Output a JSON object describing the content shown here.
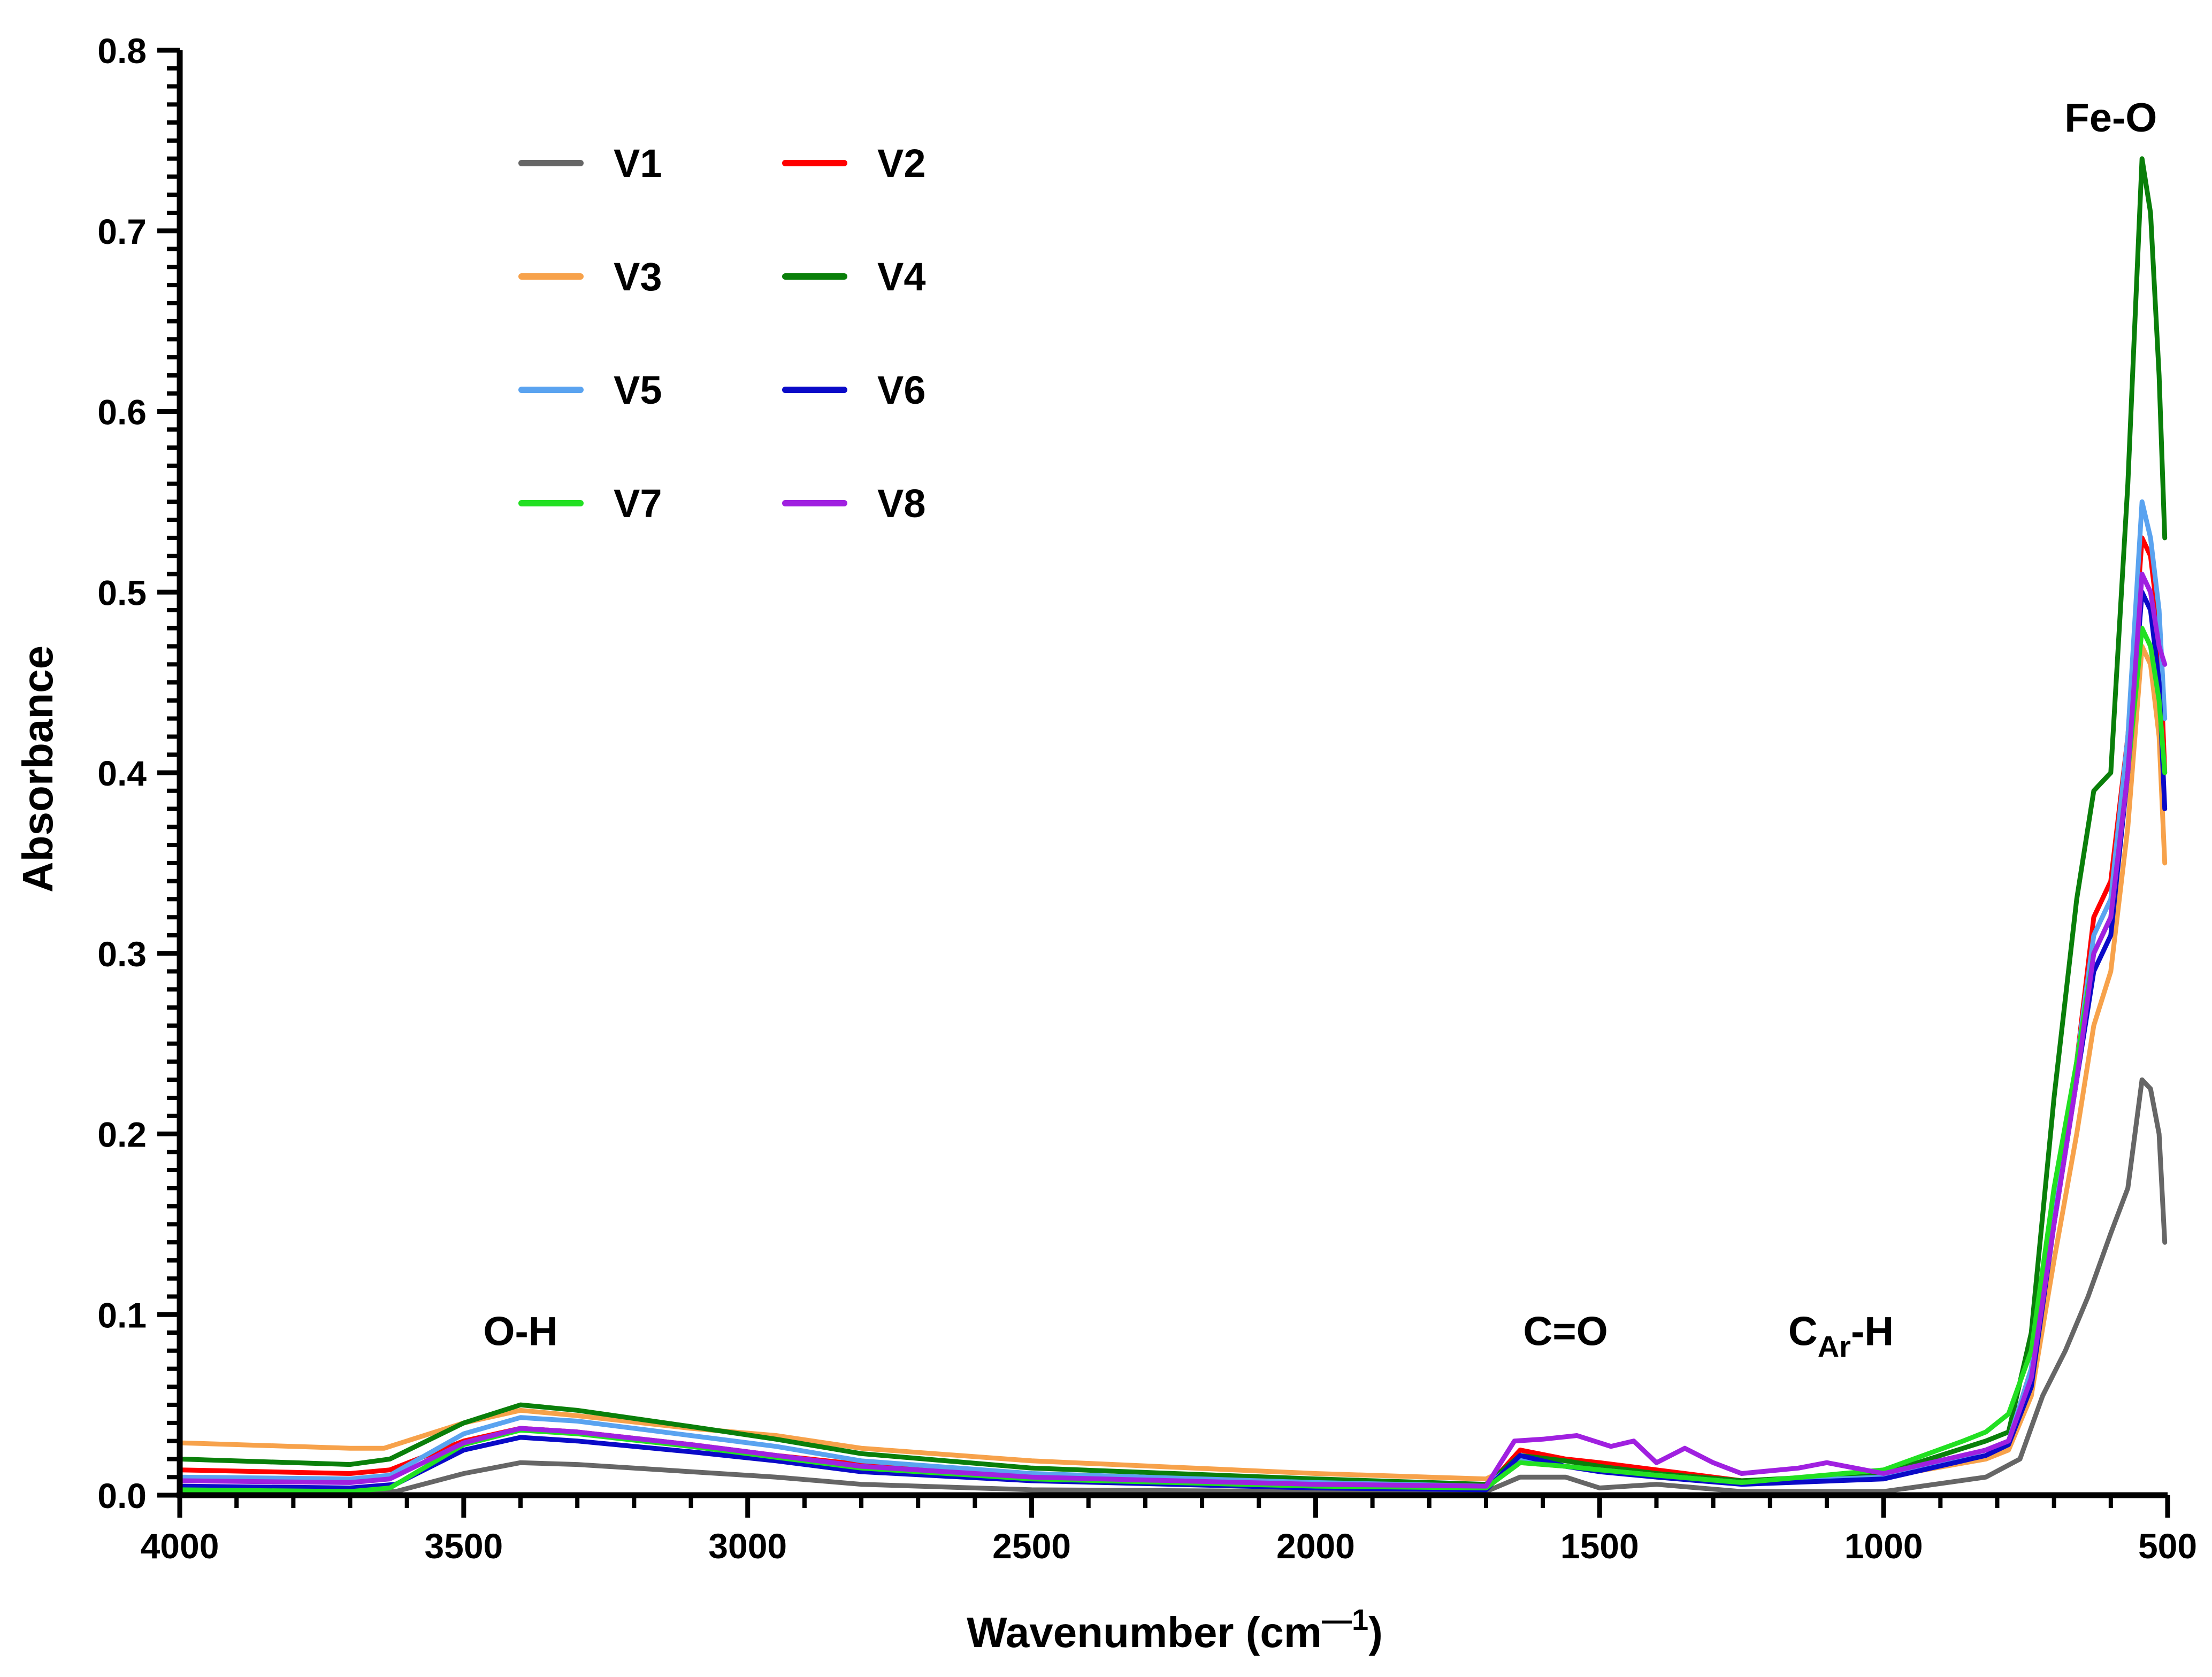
{
  "chart_data": {
    "type": "line",
    "title": "",
    "xlabel": "Wavenumber (cm",
    "xlabel_superscript": "—1",
    "xlabel_close": ")",
    "ylabel": "Absorbance",
    "xlim": [
      4000,
      500
    ],
    "ylim": [
      0.0,
      0.8
    ],
    "x_reversed": true,
    "x_ticks": [
      4000,
      3500,
      3000,
      2500,
      2000,
      1500,
      1000,
      500
    ],
    "x_tick_labels": [
      "4000",
      "3500",
      "3000",
      "2500",
      "2000",
      "1500",
      "1000",
      "500"
    ],
    "y_ticks": [
      0.0,
      0.1,
      0.2,
      0.3,
      0.4,
      0.5,
      0.6,
      0.7,
      0.8
    ],
    "y_tick_labels": [
      "0.0",
      "0.1",
      "0.2",
      "0.3",
      "0.4",
      "0.5",
      "0.6",
      "0.7",
      "0.8"
    ],
    "legend_position": "top-left",
    "grid": false,
    "annotations": [
      {
        "text": "O-H",
        "sub": "",
        "suffix": "",
        "x": 3400,
        "y": 0.083
      },
      {
        "text": "C=O",
        "sub": "",
        "suffix": "",
        "x": 1560,
        "y": 0.083
      },
      {
        "text": "C",
        "sub": "Ar",
        "suffix": "-H",
        "x": 1075,
        "y": 0.083
      },
      {
        "text": "Fe-O",
        "sub": "",
        "suffix": "",
        "x": 600,
        "y": 0.755
      }
    ],
    "series": [
      {
        "name": "V1",
        "color": "#666666",
        "x": [
          4000,
          3700,
          3620,
          3500,
          3400,
          3300,
          3100,
          2950,
          2800,
          2500,
          2000,
          1700,
          1640,
          1560,
          1500,
          1400,
          1250,
          1000,
          820,
          760,
          720,
          680,
          640,
          600,
          570,
          545,
          530,
          515,
          505
        ],
        "y": [
          0.002,
          0.001,
          0.002,
          0.012,
          0.018,
          0.017,
          0.013,
          0.01,
          0.006,
          0.003,
          0.002,
          0.002,
          0.01,
          0.01,
          0.004,
          0.006,
          0.002,
          0.002,
          0.01,
          0.02,
          0.055,
          0.08,
          0.11,
          0.145,
          0.17,
          0.23,
          0.225,
          0.2,
          0.14
        ]
      },
      {
        "name": "V2",
        "color": "#ff0000",
        "x": [
          4000,
          3700,
          3630,
          3500,
          3400,
          3300,
          3100,
          2950,
          2800,
          2500,
          2000,
          1700,
          1640,
          1560,
          1500,
          1400,
          1250,
          1000,
          820,
          780,
          740,
          700,
          660,
          630,
          600,
          570,
          545,
          530,
          515,
          505
        ],
        "y": [
          0.014,
          0.012,
          0.014,
          0.03,
          0.037,
          0.035,
          0.028,
          0.022,
          0.017,
          0.011,
          0.006,
          0.004,
          0.025,
          0.02,
          0.018,
          0.014,
          0.008,
          0.01,
          0.025,
          0.03,
          0.07,
          0.16,
          0.24,
          0.32,
          0.34,
          0.42,
          0.53,
          0.52,
          0.48,
          0.4
        ]
      },
      {
        "name": "V3",
        "color": "#f7a24b",
        "x": [
          4000,
          3700,
          3640,
          3500,
          3400,
          3300,
          3100,
          2950,
          2800,
          2500,
          2000,
          1700,
          1640,
          1560,
          1500,
          1400,
          1250,
          1000,
          820,
          780,
          740,
          700,
          660,
          630,
          600,
          570,
          545,
          530,
          515,
          505
        ],
        "y": [
          0.029,
          0.026,
          0.026,
          0.04,
          0.047,
          0.044,
          0.037,
          0.033,
          0.026,
          0.019,
          0.012,
          0.009,
          0.018,
          0.016,
          0.014,
          0.01,
          0.008,
          0.01,
          0.02,
          0.025,
          0.055,
          0.13,
          0.2,
          0.26,
          0.29,
          0.37,
          0.47,
          0.46,
          0.42,
          0.35
        ]
      },
      {
        "name": "V4",
        "color": "#0a7f0a",
        "x": [
          4000,
          3700,
          3630,
          3500,
          3400,
          3300,
          3100,
          2950,
          2800,
          2500,
          2000,
          1700,
          1640,
          1560,
          1500,
          1400,
          1250,
          1000,
          820,
          780,
          740,
          700,
          660,
          630,
          600,
          570,
          545,
          530,
          515,
          505
        ],
        "y": [
          0.02,
          0.017,
          0.02,
          0.04,
          0.05,
          0.047,
          0.038,
          0.031,
          0.023,
          0.015,
          0.009,
          0.006,
          0.022,
          0.019,
          0.016,
          0.012,
          0.008,
          0.012,
          0.03,
          0.035,
          0.09,
          0.22,
          0.33,
          0.39,
          0.4,
          0.56,
          0.74,
          0.71,
          0.62,
          0.53
        ]
      },
      {
        "name": "V5",
        "color": "#5aa3f0",
        "x": [
          4000,
          3700,
          3630,
          3500,
          3400,
          3300,
          3100,
          2950,
          2800,
          2500,
          2000,
          1700,
          1640,
          1560,
          1500,
          1400,
          1250,
          1000,
          820,
          780,
          740,
          700,
          660,
          630,
          600,
          570,
          545,
          530,
          515,
          505
        ],
        "y": [
          0.01,
          0.009,
          0.011,
          0.034,
          0.043,
          0.041,
          0.033,
          0.027,
          0.019,
          0.012,
          0.007,
          0.005,
          0.02,
          0.016,
          0.014,
          0.011,
          0.007,
          0.01,
          0.025,
          0.03,
          0.07,
          0.16,
          0.24,
          0.31,
          0.33,
          0.42,
          0.55,
          0.53,
          0.49,
          0.43
        ]
      },
      {
        "name": "V6",
        "color": "#0a0ac8",
        "x": [
          4000,
          3700,
          3620,
          3500,
          3400,
          3300,
          3100,
          2950,
          2800,
          2500,
          2000,
          1700,
          1640,
          1560,
          1500,
          1400,
          1250,
          1000,
          820,
          780,
          740,
          700,
          660,
          630,
          600,
          570,
          545,
          530,
          515,
          505
        ],
        "y": [
          0.005,
          0.004,
          0.006,
          0.025,
          0.032,
          0.03,
          0.024,
          0.019,
          0.013,
          0.008,
          0.004,
          0.003,
          0.022,
          0.016,
          0.013,
          0.01,
          0.006,
          0.009,
          0.022,
          0.028,
          0.06,
          0.15,
          0.23,
          0.29,
          0.31,
          0.4,
          0.5,
          0.49,
          0.45,
          0.38
        ]
      },
      {
        "name": "V7",
        "color": "#22e022",
        "x": [
          4000,
          3700,
          3630,
          3500,
          3400,
          3300,
          3100,
          2950,
          2800,
          2500,
          2000,
          1700,
          1640,
          1560,
          1500,
          1400,
          1250,
          1000,
          860,
          820,
          780,
          740,
          700,
          660,
          630,
          600,
          570,
          545,
          530,
          515,
          505
        ],
        "y": [
          0.003,
          0.002,
          0.004,
          0.028,
          0.036,
          0.034,
          0.027,
          0.021,
          0.015,
          0.009,
          0.005,
          0.004,
          0.018,
          0.016,
          0.014,
          0.011,
          0.007,
          0.014,
          0.03,
          0.035,
          0.045,
          0.08,
          0.17,
          0.24,
          0.3,
          0.32,
          0.4,
          0.48,
          0.47,
          0.44,
          0.4
        ]
      },
      {
        "name": "V8",
        "color": "#a020e0",
        "x": [
          4000,
          3700,
          3630,
          3500,
          3400,
          3300,
          3100,
          2950,
          2800,
          2500,
          2000,
          1700,
          1650,
          1600,
          1540,
          1480,
          1440,
          1400,
          1350,
          1300,
          1250,
          1150,
          1100,
          1000,
          820,
          780,
          740,
          700,
          660,
          630,
          600,
          570,
          545,
          530,
          515,
          505
        ],
        "y": [
          0.008,
          0.007,
          0.009,
          0.029,
          0.037,
          0.035,
          0.028,
          0.022,
          0.016,
          0.01,
          0.006,
          0.005,
          0.03,
          0.031,
          0.033,
          0.027,
          0.03,
          0.018,
          0.026,
          0.018,
          0.012,
          0.015,
          0.018,
          0.012,
          0.025,
          0.03,
          0.065,
          0.15,
          0.23,
          0.3,
          0.32,
          0.4,
          0.51,
          0.5,
          0.47,
          0.46
        ]
      }
    ]
  }
}
